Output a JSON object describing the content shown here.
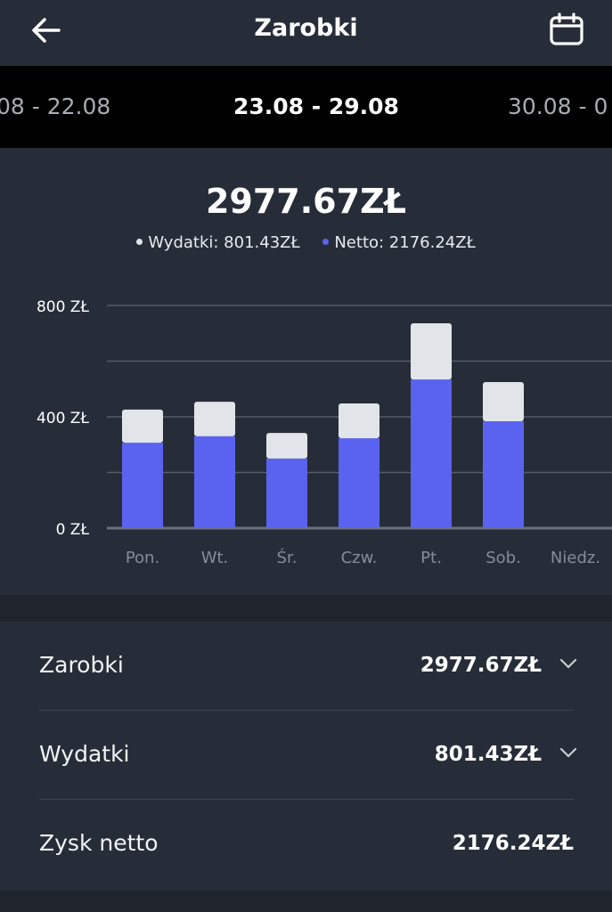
{
  "header": {
    "title": "Zarobki",
    "back_icon": "arrow-left-icon",
    "calendar_icon": "calendar-icon"
  },
  "weeks": {
    "prev": "08 - 22.08",
    "current": "23.08 - 29.08",
    "next": "30.08 - 0"
  },
  "summary_top": {
    "total": "2977.67ZŁ",
    "legend": [
      {
        "label": "Wydatki: 801.43ZŁ",
        "color": "#e1e4e9"
      },
      {
        "label": "Netto: 2176.24ZŁ",
        "color": "#5a63f0"
      }
    ]
  },
  "chart_data": {
    "type": "bar",
    "stacked": true,
    "categories": [
      "Pon.",
      "Wt.",
      "Śr.",
      "Czw.",
      "Pt.",
      "Sob.",
      "Niedz."
    ],
    "series": [
      {
        "name": "Netto",
        "color": "#5a63f0",
        "values": [
          307,
          330,
          250,
          323,
          534,
          384,
          0
        ]
      },
      {
        "name": "Wydatki",
        "color": "#e1e4e9",
        "values": [
          119,
          124,
          92,
          125,
          202,
          141,
          0
        ]
      }
    ],
    "ylim": [
      0,
      800
    ],
    "yticks": [
      {
        "value": 0,
        "label": "0 ZŁ"
      },
      {
        "value": 400,
        "label": "400 ZŁ"
      },
      {
        "value": 800,
        "label": "800 ZŁ"
      }
    ],
    "grid_values": [
      0,
      200,
      400,
      600,
      800
    ],
    "grid": true
  },
  "summary": {
    "rows": [
      {
        "label": "Zarobki",
        "value": "2977.67ZŁ",
        "expandable": true
      },
      {
        "label": "Wydatki",
        "value": "801.43ZŁ",
        "expandable": true
      },
      {
        "label": "Zysk netto",
        "value": "2176.24ZŁ",
        "expandable": false
      }
    ]
  }
}
